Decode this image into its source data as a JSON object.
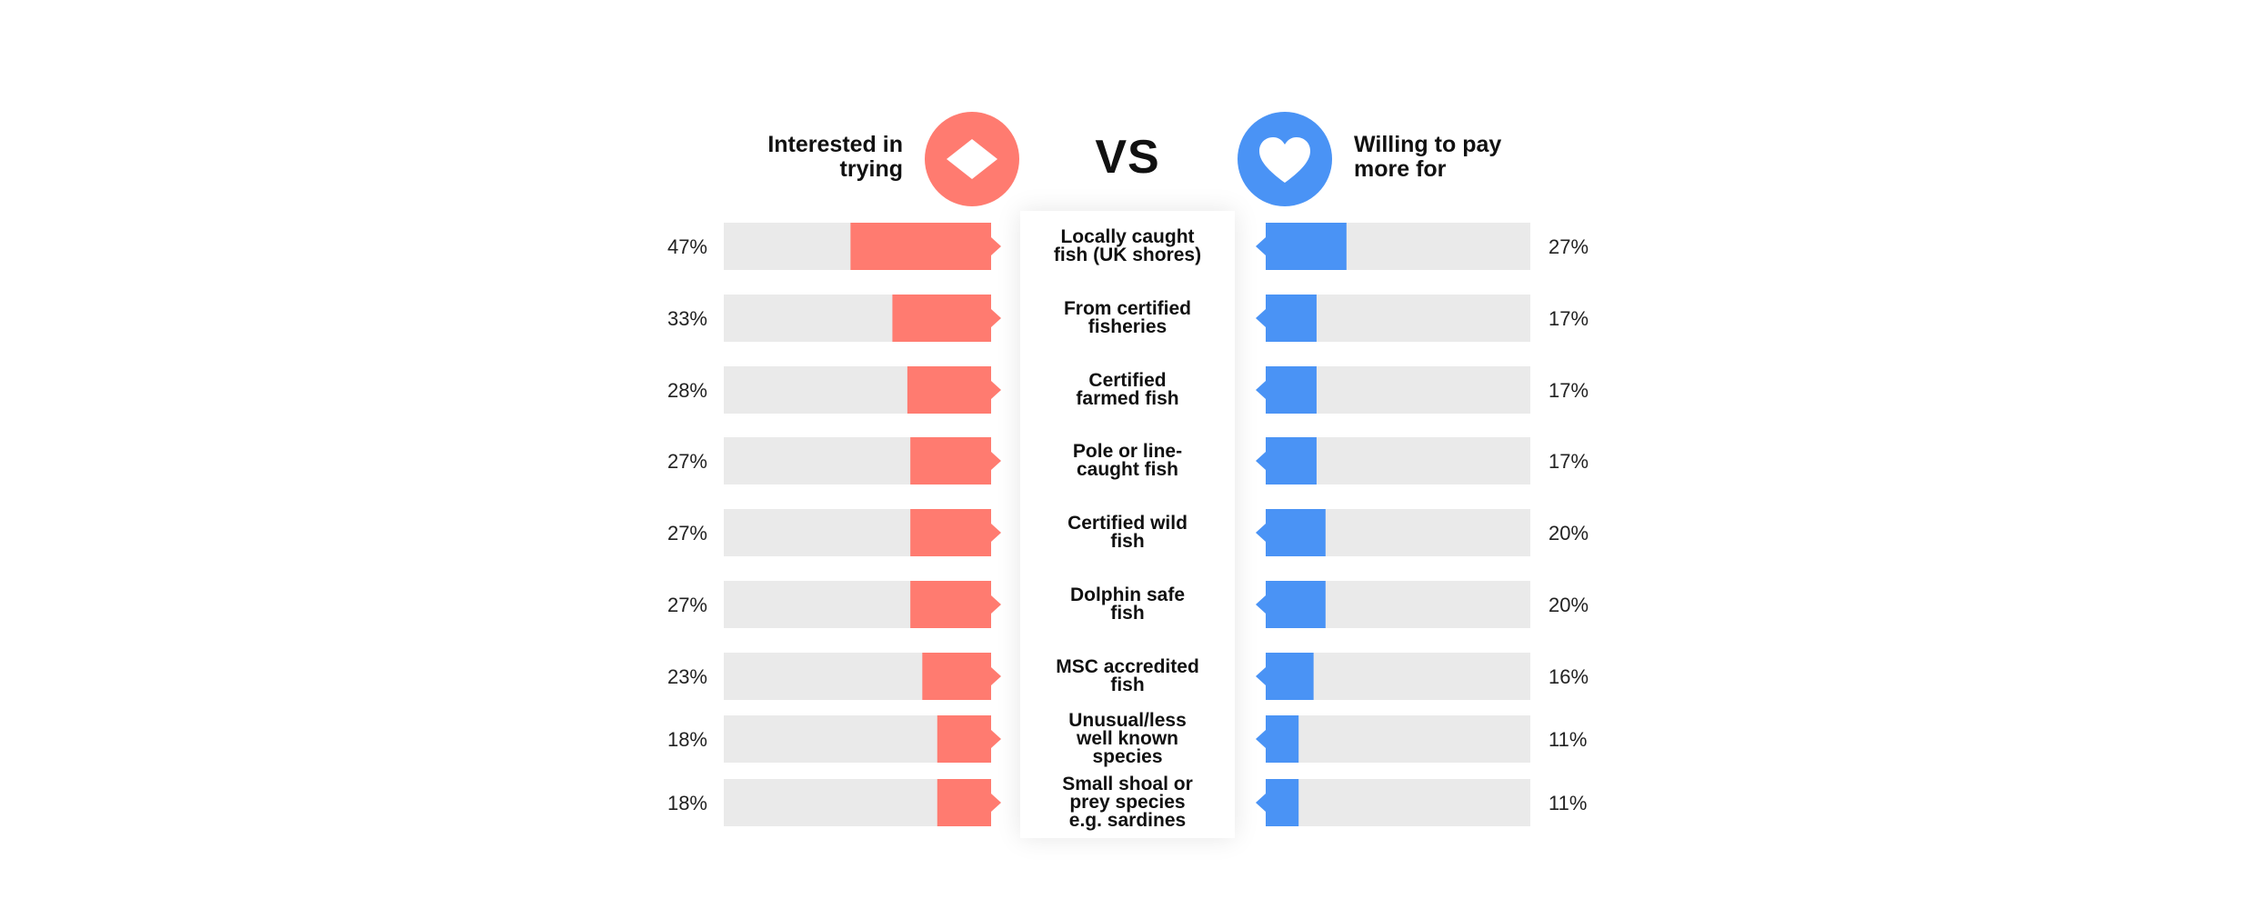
{
  "header": {
    "left_title": "Interested in\ntrying",
    "right_title": "Willing to pay\nmore for",
    "vs": "VS",
    "left_icon": "diamond-icon",
    "right_icon": "heart-icon"
  },
  "colors": {
    "left": "#FF7B70",
    "right": "#4A93F5",
    "track": "#EAEAEA"
  },
  "chart_data": {
    "type": "bar",
    "categories": [
      "Locally caught\nfish (UK shores)",
      "From certified\nfisheries",
      "Certified\nfarmed fish",
      "Pole or line-\ncaught fish",
      "Certified wild\nfish",
      "Dolphin safe\nfish",
      "MSC accredited\nfish",
      "Unusual/less\nwell known\nspecies",
      "Small shoal or\nprey species\ne.g. sardines"
    ],
    "series": [
      {
        "name": "Interested in trying",
        "values": [
          47,
          33,
          28,
          27,
          27,
          27,
          23,
          18,
          18
        ],
        "labels": [
          "47%",
          "33%",
          "28%",
          "27%",
          "27%",
          "27%",
          "23%",
          "18%",
          "18%"
        ]
      },
      {
        "name": "Willing to pay more for",
        "values": [
          27,
          17,
          17,
          17,
          20,
          20,
          16,
          11,
          11
        ],
        "labels": [
          "27%",
          "17%",
          "17%",
          "17%",
          "20%",
          "20%",
          "16%",
          "11%",
          "11%"
        ]
      }
    ],
    "ylim": [
      0,
      100
    ]
  }
}
